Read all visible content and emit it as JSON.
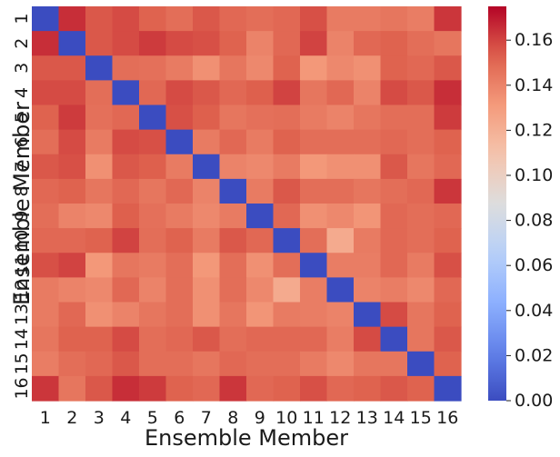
{
  "chart_data": {
    "type": "heatmap",
    "title": "",
    "xlabel": "Ensemble Member",
    "ylabel": "Ensemble Member",
    "x_categories": [
      "1",
      "2",
      "3",
      "4",
      "5",
      "6",
      "7",
      "8",
      "9",
      "10",
      "11",
      "12",
      "13",
      "14",
      "15",
      "16"
    ],
    "y_categories": [
      "1",
      "2",
      "3",
      "4",
      "5",
      "6",
      "7",
      "8",
      "9",
      "10",
      "11",
      "12",
      "13",
      "14",
      "15",
      "16"
    ],
    "colormap": "coolwarm",
    "vmin": 0.0,
    "vmax": 0.175,
    "colorbar_ticks": [
      "0.00",
      "0.02",
      "0.04",
      "0.06",
      "0.08",
      "0.10",
      "0.12",
      "0.14",
      "0.16"
    ],
    "matrix": [
      [
        0.0,
        0.165,
        0.155,
        0.158,
        0.152,
        0.148,
        0.155,
        0.15,
        0.148,
        0.15,
        0.157,
        0.143,
        0.143,
        0.145,
        0.142,
        0.163
      ],
      [
        0.165,
        0.0,
        0.155,
        0.158,
        0.162,
        0.158,
        0.157,
        0.152,
        0.14,
        0.15,
        0.16,
        0.14,
        0.15,
        0.152,
        0.148,
        0.145
      ],
      [
        0.155,
        0.155,
        0.0,
        0.148,
        0.147,
        0.143,
        0.135,
        0.145,
        0.138,
        0.152,
        0.132,
        0.138,
        0.135,
        0.152,
        0.15,
        0.155
      ],
      [
        0.158,
        0.158,
        0.148,
        0.0,
        0.15,
        0.158,
        0.155,
        0.15,
        0.153,
        0.16,
        0.145,
        0.15,
        0.14,
        0.158,
        0.155,
        0.165
      ],
      [
        0.152,
        0.162,
        0.147,
        0.15,
        0.0,
        0.157,
        0.153,
        0.145,
        0.147,
        0.148,
        0.143,
        0.14,
        0.145,
        0.148,
        0.148,
        0.162
      ],
      [
        0.148,
        0.158,
        0.143,
        0.158,
        0.157,
        0.0,
        0.143,
        0.15,
        0.143,
        0.152,
        0.148,
        0.148,
        0.148,
        0.15,
        0.148,
        0.152
      ],
      [
        0.155,
        0.157,
        0.135,
        0.155,
        0.153,
        0.143,
        0.0,
        0.14,
        0.138,
        0.143,
        0.132,
        0.135,
        0.135,
        0.155,
        0.145,
        0.15
      ],
      [
        0.15,
        0.152,
        0.145,
        0.15,
        0.145,
        0.15,
        0.14,
        0.0,
        0.143,
        0.155,
        0.148,
        0.148,
        0.145,
        0.148,
        0.15,
        0.163
      ],
      [
        0.148,
        0.14,
        0.138,
        0.153,
        0.147,
        0.143,
        0.138,
        0.143,
        0.0,
        0.15,
        0.135,
        0.138,
        0.133,
        0.15,
        0.148,
        0.15
      ],
      [
        0.15,
        0.15,
        0.152,
        0.16,
        0.148,
        0.152,
        0.143,
        0.155,
        0.15,
        0.0,
        0.148,
        0.123,
        0.143,
        0.15,
        0.148,
        0.152
      ],
      [
        0.157,
        0.16,
        0.132,
        0.145,
        0.143,
        0.148,
        0.132,
        0.148,
        0.135,
        0.148,
        0.0,
        0.142,
        0.142,
        0.15,
        0.143,
        0.157
      ],
      [
        0.143,
        0.14,
        0.138,
        0.15,
        0.14,
        0.148,
        0.135,
        0.148,
        0.138,
        0.123,
        0.142,
        0.0,
        0.14,
        0.142,
        0.138,
        0.15
      ],
      [
        0.143,
        0.15,
        0.135,
        0.14,
        0.145,
        0.148,
        0.135,
        0.145,
        0.133,
        0.143,
        0.142,
        0.14,
        0.0,
        0.158,
        0.145,
        0.152
      ],
      [
        0.145,
        0.152,
        0.152,
        0.158,
        0.148,
        0.15,
        0.155,
        0.148,
        0.15,
        0.15,
        0.15,
        0.142,
        0.158,
        0.0,
        0.145,
        0.155
      ],
      [
        0.142,
        0.148,
        0.15,
        0.155,
        0.148,
        0.148,
        0.145,
        0.15,
        0.148,
        0.148,
        0.143,
        0.138,
        0.145,
        0.145,
        0.0,
        0.152
      ],
      [
        0.163,
        0.145,
        0.155,
        0.165,
        0.162,
        0.152,
        0.15,
        0.163,
        0.15,
        0.152,
        0.157,
        0.15,
        0.152,
        0.155,
        0.152,
        0.0
      ]
    ]
  }
}
